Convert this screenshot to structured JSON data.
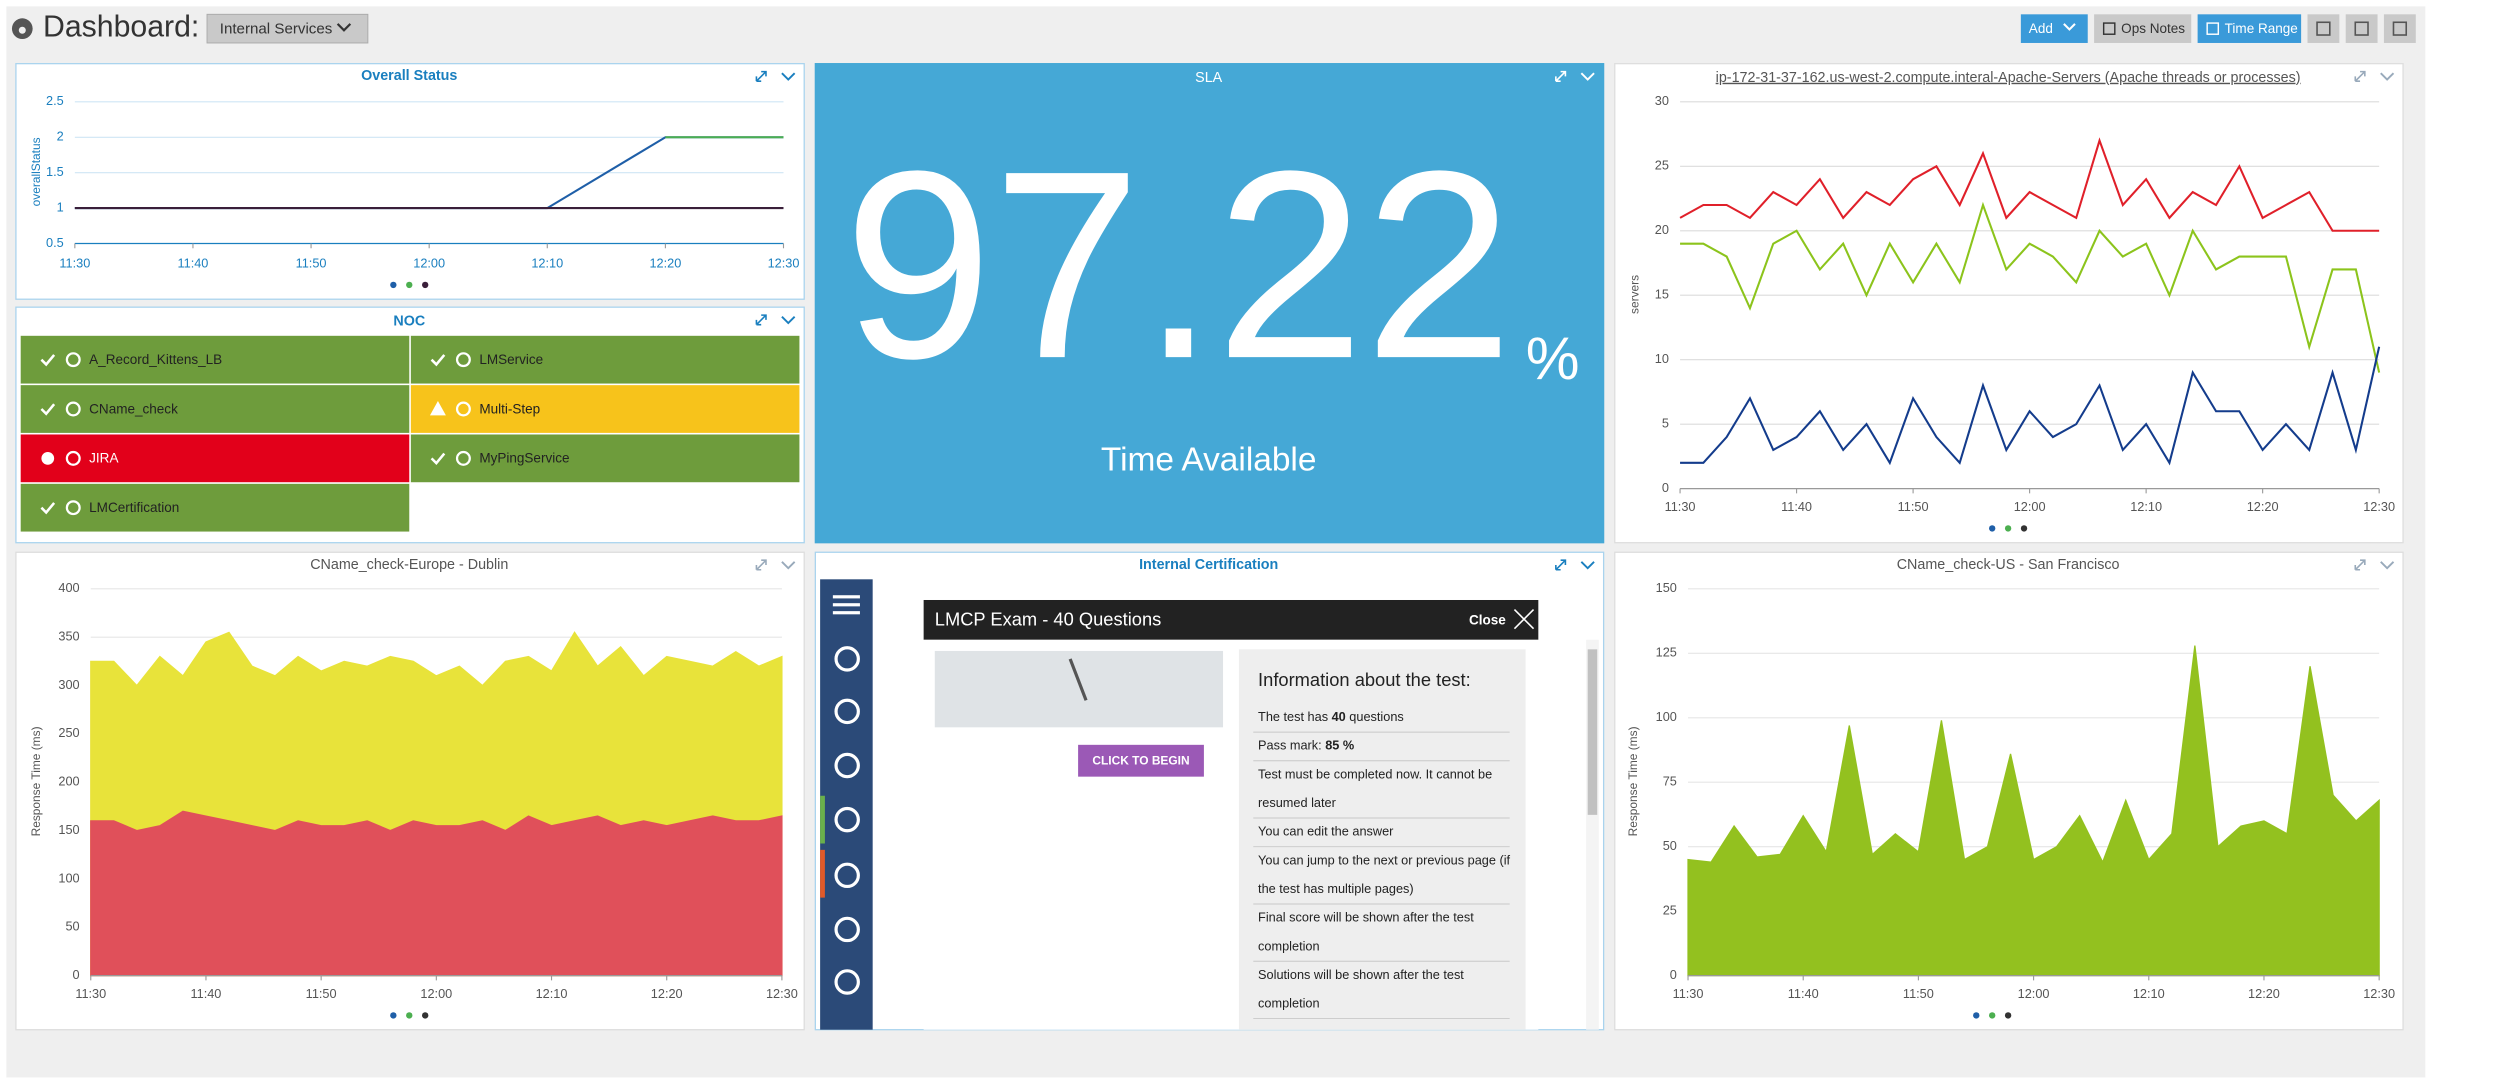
{
  "header": {
    "title": "Dashboard:",
    "dashboard": "Internal Services",
    "buttons": [
      "Add",
      "Ops Notes",
      "Time Range"
    ]
  },
  "sla": {
    "title": "SLA",
    "value": 97.22,
    "unit": "%",
    "caption": "Time Available"
  },
  "noc": {
    "title": "NOC",
    "items": [
      {
        "label": "A_Record_Kittens_LB",
        "status": "ok",
        "color": "#6e9c3c"
      },
      {
        "label": "LMService",
        "status": "ok",
        "color": "#6e9c3c"
      },
      {
        "label": "CName_check",
        "status": "ok",
        "color": "#6e9c3c"
      },
      {
        "label": "Multi-Step",
        "status": "warning",
        "color": "#f7c31b"
      },
      {
        "label": "JIRA",
        "status": "critical",
        "color": "#e2001a"
      },
      {
        "label": "MyPingService",
        "status": "ok",
        "color": "#6e9c3c"
      },
      {
        "label": "LMCertification",
        "status": "ok",
        "color": "#6e9c3c"
      }
    ]
  },
  "certification": {
    "title": "Internal Certification",
    "modal_title": "LMCP Exam - 40 Questions",
    "close": "Close",
    "button": "CLICK TO BEGIN",
    "info_title": "Information about the test:",
    "items": [
      {
        "text": "The test has ",
        "bold": "40",
        "tail": " questions"
      },
      {
        "text": "Pass mark: ",
        "bold": "85 %"
      },
      {
        "lines": [
          "Test must be completed now. It cannot be",
          "resumed later"
        ]
      },
      {
        "lines": [
          "You can edit the answer"
        ]
      },
      {
        "lines": [
          "You can jump to the next or previous page (if",
          "the test has multiple pages)"
        ]
      },
      {
        "lines": [
          "Final score will be shown after the test",
          "completion"
        ]
      },
      {
        "lines": [
          "Solutions will be shown after the test",
          "completion"
        ]
      }
    ]
  },
  "chart_data": [
    {
      "type": "line",
      "title": "Overall Status",
      "y_label": "overallStatus",
      "x": [
        "11:30",
        "11:40",
        "11:50",
        "12:00",
        "12:10",
        "12:20",
        "12:30"
      ],
      "xticks": [
        "11:30",
        "11:40",
        "11:50",
        "12:00",
        "12:10",
        "12:20",
        "12:30"
      ],
      "ylim": [
        0.5,
        2.5
      ],
      "yticks": [
        0.5,
        1,
        1.5,
        2,
        2.5
      ],
      "grid": true,
      "series": [
        {
          "color": "#1f5fa8",
          "values": [
            1,
            1,
            1,
            1,
            1,
            2,
            2
          ]
        },
        {
          "color": "#4caf50",
          "values": [
            null,
            null,
            null,
            null,
            null,
            2,
            2
          ]
        },
        {
          "color": "#3a1f3a",
          "values": [
            1,
            1,
            1,
            1,
            1,
            1,
            1
          ]
        }
      ]
    },
    {
      "type": "line",
      "title": "ip-172-31-37-162.us-west-2.compute.interal-Apache-Servers (Apache threads or processes)",
      "y_label": "servers",
      "x": [
        "11:30",
        "11:32",
        "11:34",
        "11:36",
        "11:38",
        "11:40",
        "11:42",
        "11:44",
        "11:46",
        "11:48",
        "11:50",
        "11:52",
        "11:54",
        "11:56",
        "11:58",
        "12:00",
        "12:02",
        "12:04",
        "12:06",
        "12:08",
        "12:10",
        "12:12",
        "12:14",
        "12:16",
        "12:18",
        "12:20",
        "12:22",
        "12:24",
        "12:26",
        "12:28",
        "12:30"
      ],
      "xticks": [
        "11:30",
        "11:40",
        "11:50",
        "12:00",
        "12:10",
        "12:20",
        "12:30"
      ],
      "ylim": [
        0,
        30
      ],
      "yticks": [
        0,
        5,
        10,
        15,
        20,
        25,
        30
      ],
      "grid": true,
      "series": [
        {
          "color": "#e0202a",
          "values": [
            21,
            22,
            22,
            21,
            23,
            22,
            24,
            21,
            23,
            22,
            24,
            25,
            22,
            26,
            21,
            23,
            22,
            21,
            27,
            22,
            24,
            21,
            23,
            22,
            25,
            21,
            22,
            23,
            20,
            20,
            20
          ]
        },
        {
          "color": "#8cc41c",
          "values": [
            19,
            19,
            18,
            14,
            19,
            20,
            17,
            19,
            15,
            19,
            16,
            19,
            16,
            22,
            17,
            19,
            18,
            16,
            20,
            18,
            19,
            15,
            20,
            17,
            18,
            18,
            18,
            11,
            17,
            17,
            9
          ]
        },
        {
          "color": "#143c8c",
          "values": [
            2,
            2,
            4,
            7,
            3,
            4,
            6,
            3,
            5,
            2,
            7,
            4,
            2,
            8,
            3,
            6,
            4,
            5,
            8,
            3,
            5,
            2,
            9,
            6,
            6,
            3,
            5,
            3,
            9,
            3,
            11
          ]
        }
      ]
    },
    {
      "type": "area",
      "title": "CName_check-Europe - Dublin",
      "y_label": "Response Time (ms)",
      "x": [
        "11:30",
        "11:32",
        "11:34",
        "11:36",
        "11:38",
        "11:40",
        "11:42",
        "11:44",
        "11:46",
        "11:48",
        "11:50",
        "11:52",
        "11:54",
        "11:56",
        "11:58",
        "12:00",
        "12:02",
        "12:04",
        "12:06",
        "12:08",
        "12:10",
        "12:12",
        "12:14",
        "12:16",
        "12:18",
        "12:20",
        "12:22",
        "12:24",
        "12:26",
        "12:28",
        "12:30"
      ],
      "xticks": [
        "11:30",
        "11:40",
        "11:50",
        "12:00",
        "12:10",
        "12:20",
        "12:30"
      ],
      "ylim": [
        0,
        400
      ],
      "yticks": [
        0,
        50,
        100,
        150,
        200,
        250,
        300,
        350,
        400
      ],
      "grid": true,
      "series": [
        {
          "color": "#e8e33a",
          "values": [
            325,
            325,
            300,
            330,
            310,
            345,
            355,
            320,
            310,
            330,
            315,
            325,
            320,
            330,
            325,
            310,
            320,
            300,
            325,
            330,
            315,
            355,
            320,
            340,
            310,
            330,
            325,
            320,
            335,
            320,
            330
          ]
        },
        {
          "color": "#e0505a",
          "values": [
            160,
            160,
            150,
            155,
            170,
            165,
            160,
            155,
            150,
            160,
            155,
            155,
            160,
            150,
            160,
            155,
            155,
            160,
            150,
            165,
            155,
            160,
            165,
            155,
            160,
            155,
            160,
            165,
            160,
            160,
            165
          ]
        }
      ]
    },
    {
      "type": "area",
      "title": "CName_check-US - San Francisco",
      "y_label": "Response Time (ms)",
      "x": [
        "11:30",
        "11:32",
        "11:34",
        "11:36",
        "11:38",
        "11:40",
        "11:42",
        "11:44",
        "11:46",
        "11:48",
        "11:50",
        "11:52",
        "11:54",
        "11:56",
        "11:58",
        "12:00",
        "12:02",
        "12:04",
        "12:06",
        "12:08",
        "12:10",
        "12:12",
        "12:14",
        "12:16",
        "12:18",
        "12:20",
        "12:22",
        "12:24",
        "12:26",
        "12:28",
        "12:30"
      ],
      "xticks": [
        "11:30",
        "11:40",
        "11:50",
        "12:00",
        "12:10",
        "12:20",
        "12:30"
      ],
      "ylim": [
        0,
        150
      ],
      "yticks": [
        0,
        25,
        50,
        75,
        100,
        125,
        150
      ],
      "grid": true,
      "series": [
        {
          "color": "#93c11f",
          "values": [
            45,
            44,
            58,
            46,
            47,
            62,
            48,
            97,
            47,
            55,
            48,
            99,
            45,
            50,
            86,
            45,
            50,
            62,
            44,
            68,
            45,
            55,
            128,
            50,
            58,
            60,
            55,
            120,
            70,
            60,
            68
          ]
        }
      ]
    }
  ]
}
